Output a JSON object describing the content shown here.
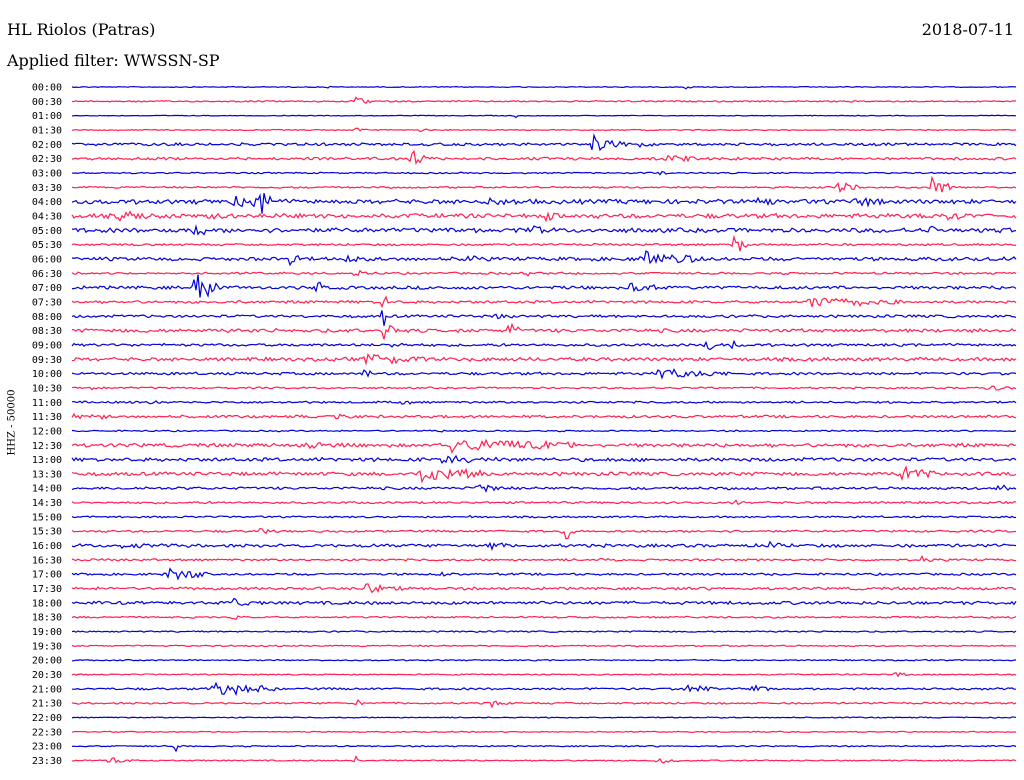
{
  "header": {
    "station": "HL Riolos (Patras)",
    "date": "2018-07-11",
    "filter": "Applied filter: WWSSN-SP"
  },
  "chart_data": {
    "type": "line",
    "title": "HL Riolos (Patras)",
    "ylabel": "HHZ - 50000",
    "colors": [
      "#0000d8",
      "#ff2050"
    ],
    "row_labels": [
      "00:00",
      "00:30",
      "01:00",
      "01:30",
      "02:00",
      "02:30",
      "03:00",
      "03:30",
      "04:00",
      "04:30",
      "05:00",
      "05:30",
      "06:00",
      "06:30",
      "07:00",
      "07:30",
      "08:00",
      "08:30",
      "09:00",
      "09:30",
      "10:00",
      "10:30",
      "11:00",
      "11:30",
      "12:00",
      "12:30",
      "13:00",
      "13:30",
      "14:00",
      "14:30",
      "15:00",
      "15:30",
      "16:00",
      "16:30",
      "17:00",
      "17:30",
      "18:00",
      "18:30",
      "19:00",
      "19:30",
      "20:00",
      "20:30",
      "21:00",
      "21:30",
      "22:00",
      "22:30",
      "23:00",
      "23:30"
    ],
    "series": [
      {
        "label": "00:00",
        "noise": 0.5,
        "events": [
          [
            0.27,
            2,
            3
          ],
          [
            0.65,
            2,
            6
          ]
        ]
      },
      {
        "label": "00:30",
        "noise": 0.8,
        "events": [
          [
            0.3,
            4,
            12
          ]
        ]
      },
      {
        "label": "01:00",
        "noise": 0.4,
        "events": [
          [
            0.47,
            2,
            3
          ]
        ]
      },
      {
        "label": "01:30",
        "noise": 0.6,
        "events": [
          [
            0.3,
            3,
            8
          ],
          [
            0.37,
            4,
            3
          ]
        ]
      },
      {
        "label": "02:00",
        "noise": 1.5,
        "events": [
          [
            0.55,
            9,
            25
          ],
          [
            0.6,
            4,
            10
          ]
        ]
      },
      {
        "label": "02:30",
        "noise": 1.5,
        "events": [
          [
            0.32,
            5,
            8
          ],
          [
            0.36,
            8,
            12
          ],
          [
            0.63,
            5,
            20
          ]
        ]
      },
      {
        "label": "03:00",
        "noise": 0.8,
        "events": [
          [
            0.62,
            2,
            15
          ]
        ]
      },
      {
        "label": "03:30",
        "noise": 1,
        "events": [
          [
            0.81,
            10,
            15
          ],
          [
            0.91,
            16,
            12
          ]
        ]
      },
      {
        "label": "04:00",
        "noise": 2.5,
        "events": [
          [
            0.17,
            6,
            25
          ],
          [
            0.2,
            12,
            8
          ],
          [
            0.44,
            3,
            20
          ],
          [
            0.72,
            4,
            15
          ],
          [
            0.83,
            4,
            20
          ]
        ]
      },
      {
        "label": "04:30",
        "noise": 2.5,
        "events": [
          [
            0.05,
            4,
            30
          ],
          [
            0.15,
            4,
            6
          ],
          [
            0.5,
            5,
            10
          ],
          [
            0.93,
            5,
            12
          ]
        ]
      },
      {
        "label": "05:00",
        "noise": 2.5,
        "events": [
          [
            0.13,
            8,
            10
          ],
          [
            0.4,
            4,
            5
          ],
          [
            0.49,
            5,
            8
          ],
          [
            0.91,
            8,
            5
          ]
        ]
      },
      {
        "label": "05:30",
        "noise": 1.2,
        "events": [
          [
            0.7,
            14,
            10
          ]
        ]
      },
      {
        "label": "06:00",
        "noise": 2,
        "events": [
          [
            0.23,
            6,
            8
          ],
          [
            0.29,
            5,
            8
          ],
          [
            0.42,
            5,
            8
          ],
          [
            0.6,
            8,
            40
          ]
        ]
      },
      {
        "label": "06:30",
        "noise": 1.2,
        "events": [
          [
            0.3,
            3,
            10
          ],
          [
            0.48,
            3,
            10
          ]
        ]
      },
      {
        "label": "07:00",
        "noise": 1.8,
        "events": [
          [
            0.13,
            20,
            15
          ],
          [
            0.26,
            10,
            8
          ],
          [
            0.59,
            5,
            20
          ]
        ]
      },
      {
        "label": "07:30",
        "noise": 1.5,
        "events": [
          [
            0.33,
            12,
            3
          ],
          [
            0.78,
            6,
            60
          ]
        ]
      },
      {
        "label": "08:00",
        "noise": 1.5,
        "events": [
          [
            0.33,
            14,
            3
          ],
          [
            0.45,
            3,
            10
          ]
        ]
      },
      {
        "label": "08:30",
        "noise": 2,
        "events": [
          [
            0.33,
            12,
            8
          ],
          [
            0.46,
            14,
            8
          ]
        ]
      },
      {
        "label": "09:00",
        "noise": 1.5,
        "events": [
          [
            0.34,
            8,
            6
          ],
          [
            0.67,
            12,
            6
          ],
          [
            0.7,
            6,
            5
          ]
        ]
      },
      {
        "label": "09:30",
        "noise": 2,
        "events": [
          [
            0.31,
            6,
            40
          ],
          [
            0.46,
            6,
            4
          ]
        ]
      },
      {
        "label": "10:00",
        "noise": 1.5,
        "events": [
          [
            0.31,
            10,
            4
          ],
          [
            0.62,
            6,
            45
          ]
        ]
      },
      {
        "label": "10:30",
        "noise": 1,
        "events": [
          [
            0.02,
            3,
            10
          ],
          [
            0.97,
            3,
            20
          ]
        ]
      },
      {
        "label": "11:00",
        "noise": 1.2,
        "events": [
          [
            0.08,
            2,
            8
          ],
          [
            0.35,
            3,
            6
          ]
        ]
      },
      {
        "label": "11:30",
        "noise": 1.5,
        "events": [
          [
            0.0,
            3,
            25
          ],
          [
            0.28,
            3,
            10
          ]
        ]
      },
      {
        "label": "12:00",
        "noise": 0.8,
        "events": [
          [
            0.39,
            6,
            3
          ]
        ]
      },
      {
        "label": "12:30",
        "noise": 2,
        "events": [
          [
            0.25,
            3,
            30
          ],
          [
            0.4,
            8,
            80
          ]
        ]
      },
      {
        "label": "13:00",
        "noise": 2,
        "events": [
          [
            0.39,
            4,
            40
          ]
        ]
      },
      {
        "label": "13:30",
        "noise": 2,
        "events": [
          [
            0.37,
            10,
            40
          ],
          [
            0.88,
            10,
            20
          ]
        ]
      },
      {
        "label": "14:00",
        "noise": 1.5,
        "events": [
          [
            0.43,
            6,
            15
          ],
          [
            0.98,
            5,
            10
          ]
        ]
      },
      {
        "label": "14:30",
        "noise": 1.2,
        "events": [
          [
            0.7,
            3,
            10
          ]
        ]
      },
      {
        "label": "15:00",
        "noise": 1,
        "events": [
          [
            0.42,
            3,
            5
          ]
        ]
      },
      {
        "label": "15:30",
        "noise": 1.2,
        "events": [
          [
            0.2,
            4,
            8
          ],
          [
            0.52,
            14,
            8
          ]
        ]
      },
      {
        "label": "16:00",
        "noise": 1.8,
        "events": [
          [
            0.05,
            3,
            20
          ],
          [
            0.44,
            5,
            10
          ],
          [
            0.74,
            5,
            8
          ]
        ]
      },
      {
        "label": "16:30",
        "noise": 1.2,
        "events": [
          [
            0.56,
            3,
            10
          ],
          [
            0.9,
            3,
            8
          ]
        ]
      },
      {
        "label": "17:00",
        "noise": 1.2,
        "events": [
          [
            0.1,
            10,
            25
          ],
          [
            0.39,
            3,
            8
          ]
        ]
      },
      {
        "label": "17:30",
        "noise": 1.5,
        "events": [
          [
            0.31,
            6,
            25
          ]
        ]
      },
      {
        "label": "18:00",
        "noise": 1.8,
        "events": [
          [
            0.17,
            8,
            10
          ]
        ]
      },
      {
        "label": "18:30",
        "noise": 1,
        "events": [
          [
            0.17,
            3,
            8
          ]
        ]
      },
      {
        "label": "19:00",
        "noise": 0.8,
        "events": []
      },
      {
        "label": "19:30",
        "noise": 0.8,
        "events": []
      },
      {
        "label": "20:00",
        "noise": 0.7,
        "events": []
      },
      {
        "label": "20:30",
        "noise": 0.7,
        "events": [
          [
            0.87,
            3,
            10
          ]
        ]
      },
      {
        "label": "21:00",
        "noise": 1.2,
        "events": [
          [
            0.15,
            9,
            40
          ],
          [
            0.65,
            6,
            20
          ],
          [
            0.72,
            4,
            15
          ]
        ]
      },
      {
        "label": "21:30",
        "noise": 1,
        "events": [
          [
            0.3,
            4,
            8
          ],
          [
            0.44,
            4,
            15
          ]
        ]
      },
      {
        "label": "22:00",
        "noise": 0.6,
        "events": []
      },
      {
        "label": "22:30",
        "noise": 0.6,
        "events": []
      },
      {
        "label": "23:00",
        "noise": 0.7,
        "events": [
          [
            0.11,
            6,
            3
          ]
        ]
      },
      {
        "label": "23:30",
        "noise": 0.7,
        "events": [
          [
            0.04,
            4,
            15
          ],
          [
            0.3,
            8,
            3
          ],
          [
            0.62,
            4,
            15
          ]
        ]
      }
    ]
  }
}
